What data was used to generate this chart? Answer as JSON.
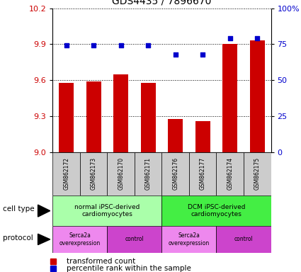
{
  "title": "GDS4435 / 7896670",
  "samples": [
    "GSM862172",
    "GSM862173",
    "GSM862170",
    "GSM862171",
    "GSM862176",
    "GSM862177",
    "GSM862174",
    "GSM862175"
  ],
  "transformed_counts": [
    9.58,
    9.59,
    9.65,
    9.58,
    9.28,
    9.26,
    9.9,
    9.93
  ],
  "percentile_ranks": [
    74,
    74,
    74,
    74,
    68,
    68,
    79,
    79
  ],
  "ylim_left": [
    9.0,
    10.2
  ],
  "ylim_right": [
    0,
    100
  ],
  "yticks_left": [
    9.0,
    9.3,
    9.6,
    9.9,
    10.2
  ],
  "yticks_right": [
    0,
    25,
    50,
    75,
    100
  ],
  "bar_color": "#cc0000",
  "dot_color": "#0000cc",
  "cell_type_groups": [
    {
      "label": "normal iPSC-derived\ncardiomyocytes",
      "start": 0,
      "end": 4,
      "color": "#aaffaa"
    },
    {
      "label": "DCM iPSC-derived\ncardiomyocytes",
      "start": 4,
      "end": 8,
      "color": "#44ee44"
    }
  ],
  "protocol_groups": [
    {
      "label": "Serca2a\noverexpression",
      "start": 0,
      "end": 2,
      "color": "#ee88ee"
    },
    {
      "label": "control",
      "start": 2,
      "end": 4,
      "color": "#cc44cc"
    },
    {
      "label": "Serca2a\noverexpression",
      "start": 4,
      "end": 6,
      "color": "#ee88ee"
    },
    {
      "label": "control",
      "start": 6,
      "end": 8,
      "color": "#cc44cc"
    }
  ],
  "sample_box_color": "#cccccc",
  "legend_bar_label": "transformed count",
  "legend_dot_label": "percentile rank within the sample"
}
